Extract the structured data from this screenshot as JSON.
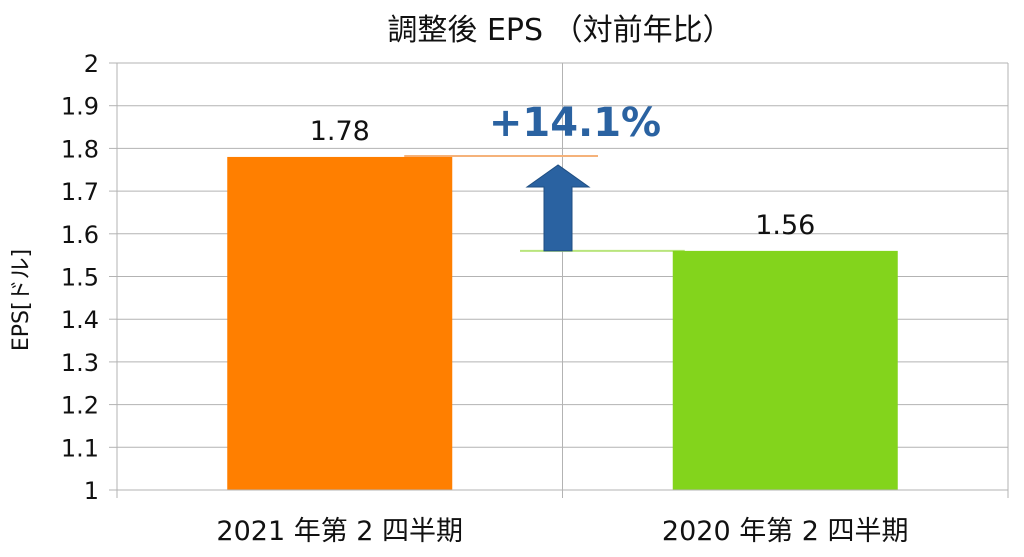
{
  "chart_data": {
    "type": "bar",
    "title": "調整後 EPS （対前年比）",
    "ylabel": "EPS[ドル]",
    "xlabel": "",
    "ylim": [
      1,
      2
    ],
    "yticks": [
      "1",
      "1.1",
      "1.2",
      "1.3",
      "1.4",
      "1.5",
      "1.6",
      "1.7",
      "1.8",
      "1.9",
      "2"
    ],
    "categories": [
      "2021 年第 2 四半期",
      "2020 年第 2 四半期"
    ],
    "values": [
      1.78,
      1.56
    ],
    "value_labels": [
      "1.78",
      "1.56"
    ],
    "bar_colors": [
      "#ff7f00",
      "#83d41c"
    ],
    "grid": true,
    "annotation": {
      "text": "+14.1%",
      "color": "#2a62a1",
      "arrow": "up",
      "from_value": 1.56,
      "to_value": 1.78
    }
  }
}
